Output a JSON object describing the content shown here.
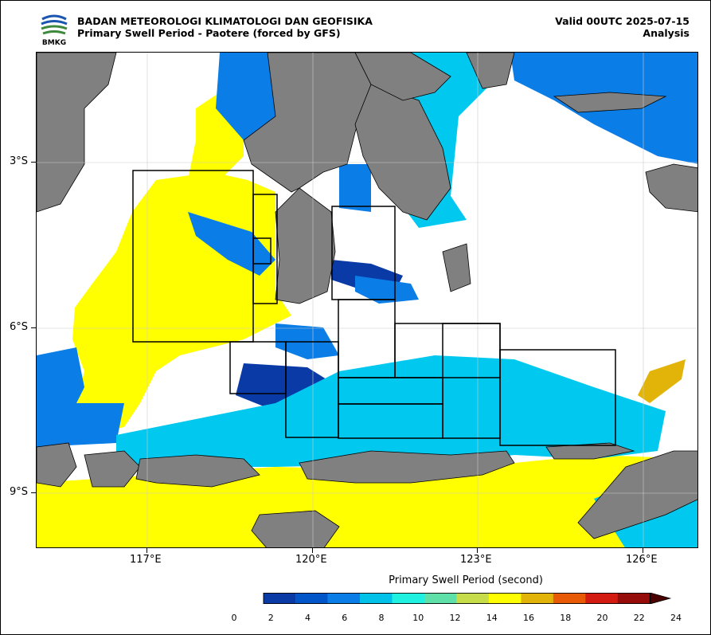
{
  "header": {
    "agency": "BADAN METEOROLOGI KLIMATOLOGI DAN GEOFISIKA",
    "subtitle": "Primary Swell Period - Paotere (forced by GFS)",
    "valid": "Valid 00UTC 2025-07-15",
    "analysis": "Analysis",
    "logo_text": "BMKG"
  },
  "axes": {
    "lat_labels": [
      "3°S",
      "6°S",
      "9°S"
    ],
    "lon_labels": [
      "117°E",
      "120°E",
      "123°E",
      "126°E"
    ]
  },
  "colorbar": {
    "title": "Primary Swell Period (second)",
    "ticks": [
      "0",
      "2",
      "4",
      "6",
      "8",
      "10",
      "12",
      "14",
      "16",
      "18",
      "20",
      "22",
      "24"
    ],
    "colors": [
      "#0a3aa6",
      "#0055c8",
      "#0a7de6",
      "#00c1e8",
      "#1ff0e0",
      "#5fe0a8",
      "#c7dc4a",
      "#ffff00",
      "#e2b40a",
      "#e85a05",
      "#d41b12",
      "#960c0a"
    ]
  },
  "colors": {
    "land": "#808080",
    "c_dark": "#0a3aa6",
    "c_mid": "#0a7de6",
    "c_cyan": "#00c8ee",
    "c_yellow": "#ffff00",
    "c_gold": "#e2b40a"
  }
}
